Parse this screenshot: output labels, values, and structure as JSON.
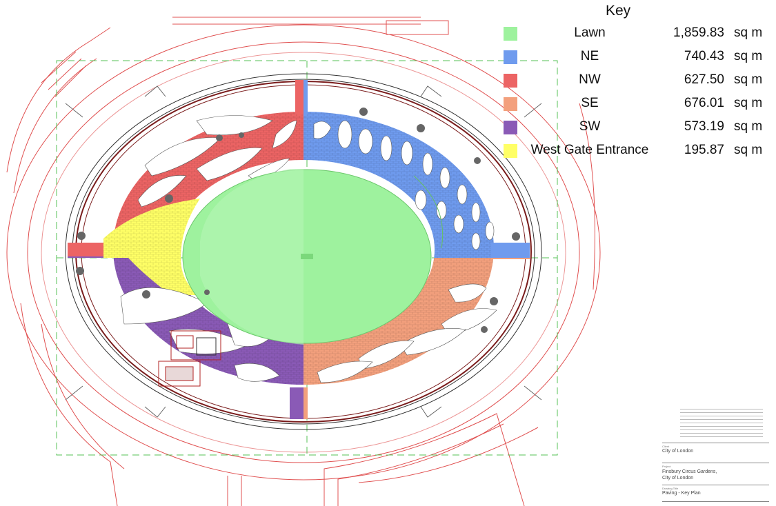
{
  "key": {
    "title": "Key",
    "unit": "sq m",
    "items": [
      {
        "label": "Lawn",
        "value": "1,859.83",
        "color": "#9ef29e"
      },
      {
        "label": "NE",
        "value": "740.43",
        "color": "#6f9bee"
      },
      {
        "label": "NW",
        "value": "627.50",
        "color": "#ec6464"
      },
      {
        "label": "SE",
        "value": "676.01",
        "color": "#f3a07d"
      },
      {
        "label": "SW",
        "value": "573.19",
        "color": "#8a5ab6"
      },
      {
        "label": "West Gate Entrance",
        "value": "195.87",
        "color": "#ffff66"
      }
    ]
  },
  "title_block": {
    "client_caption": "Client",
    "client": "City of London",
    "project_caption": "Project",
    "project_line1": "Finsbury Circus Gardens,",
    "project_line2": "City of London",
    "drawing_title_caption": "Drawing Title",
    "drawing_title": "Paving - Key Plan"
  },
  "colors": {
    "context_lines": "#e05050",
    "boundary_dash": "#55c055",
    "path_outline": "#7a1c1c"
  }
}
